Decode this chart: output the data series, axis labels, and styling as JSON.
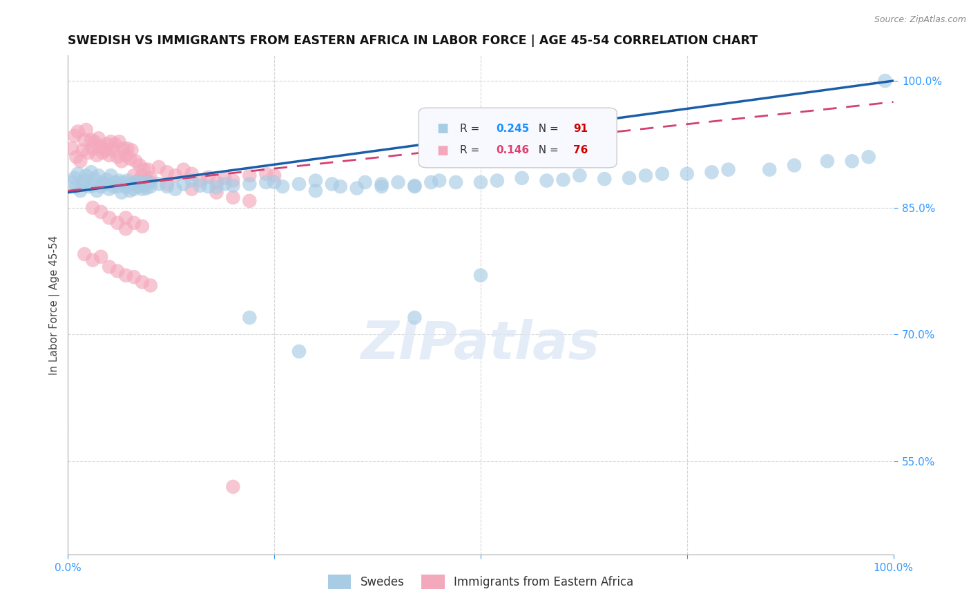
{
  "title": "SWEDISH VS IMMIGRANTS FROM EASTERN AFRICA IN LABOR FORCE | AGE 45-54 CORRELATION CHART",
  "source": "Source: ZipAtlas.com",
  "ylabel": "In Labor Force | Age 45-54",
  "xlim": [
    0.0,
    1.0
  ],
  "ylim": [
    0.44,
    1.03
  ],
  "yticks": [
    0.55,
    0.7,
    0.85,
    1.0
  ],
  "ytick_labels": [
    "55.0%",
    "70.0%",
    "85.0%",
    "100.0%"
  ],
  "xticks": [
    0.0,
    0.25,
    0.5,
    0.75,
    1.0
  ],
  "legend_label1": "Swedes",
  "legend_label2": "Immigrants from Eastern Africa",
  "R1": 0.245,
  "N1": 91,
  "R2": 0.146,
  "N2": 76,
  "color1": "#a8cce4",
  "color2": "#f4a8bc",
  "trendline1_color": "#1a5ea8",
  "trendline2_color": "#d44070",
  "background_color": "#ffffff",
  "title_fontsize": 12.5,
  "tick_color": "#3399ff",
  "legend_box_color": "#f0f4ff",
  "legend_R_color1": "#1a90ff",
  "legend_R_color2": "#e04070",
  "legend_N_color": "#cc0000",
  "swedes_x": [
    0.005,
    0.008,
    0.01,
    0.012,
    0.015,
    0.018,
    0.02,
    0.022,
    0.025,
    0.028,
    0.03,
    0.032,
    0.035,
    0.037,
    0.04,
    0.042,
    0.045,
    0.047,
    0.05,
    0.052,
    0.055,
    0.057,
    0.06,
    0.062,
    0.065,
    0.067,
    0.07,
    0.072,
    0.075,
    0.077,
    0.08,
    0.082,
    0.085,
    0.087,
    0.09,
    0.092,
    0.095,
    0.097,
    0.1,
    0.11,
    0.12,
    0.13,
    0.14,
    0.15,
    0.16,
    0.17,
    0.18,
    0.19,
    0.2,
    0.22,
    0.24,
    0.25,
    0.26,
    0.28,
    0.3,
    0.3,
    0.32,
    0.33,
    0.35,
    0.36,
    0.38,
    0.38,
    0.4,
    0.42,
    0.42,
    0.44,
    0.45,
    0.47,
    0.5,
    0.52,
    0.55,
    0.58,
    0.6,
    0.62,
    0.65,
    0.68,
    0.7,
    0.72,
    0.75,
    0.78,
    0.8,
    0.85,
    0.88,
    0.92,
    0.95,
    0.97,
    0.99,
    0.5,
    0.42,
    0.28,
    0.22
  ],
  "swedes_y": [
    0.88,
    0.885,
    0.875,
    0.89,
    0.87,
    0.878,
    0.882,
    0.888,
    0.875,
    0.892,
    0.876,
    0.884,
    0.87,
    0.888,
    0.875,
    0.88,
    0.878,
    0.883,
    0.872,
    0.888,
    0.875,
    0.88,
    0.875,
    0.882,
    0.868,
    0.88,
    0.875,
    0.882,
    0.87,
    0.878,
    0.872,
    0.88,
    0.875,
    0.88,
    0.872,
    0.876,
    0.873,
    0.88,
    0.875,
    0.878,
    0.875,
    0.872,
    0.878,
    0.882,
    0.876,
    0.875,
    0.874,
    0.878,
    0.876,
    0.878,
    0.88,
    0.88,
    0.875,
    0.878,
    0.882,
    0.87,
    0.878,
    0.875,
    0.873,
    0.88,
    0.878,
    0.875,
    0.88,
    0.876,
    0.875,
    0.88,
    0.882,
    0.88,
    0.88,
    0.882,
    0.885,
    0.882,
    0.883,
    0.888,
    0.884,
    0.885,
    0.888,
    0.89,
    0.89,
    0.892,
    0.895,
    0.895,
    0.9,
    0.905,
    0.905,
    0.91,
    1.0,
    0.77,
    0.72,
    0.68,
    0.72
  ],
  "imm_x": [
    0.005,
    0.008,
    0.01,
    0.012,
    0.015,
    0.018,
    0.02,
    0.022,
    0.025,
    0.028,
    0.03,
    0.032,
    0.035,
    0.037,
    0.04,
    0.042,
    0.045,
    0.047,
    0.05,
    0.052,
    0.055,
    0.057,
    0.06,
    0.062,
    0.065,
    0.067,
    0.07,
    0.072,
    0.075,
    0.077,
    0.08,
    0.082,
    0.085,
    0.087,
    0.09,
    0.092,
    0.095,
    0.097,
    0.1,
    0.11,
    0.12,
    0.13,
    0.14,
    0.15,
    0.16,
    0.17,
    0.18,
    0.19,
    0.2,
    0.22,
    0.24,
    0.25,
    0.07,
    0.08,
    0.09,
    0.03,
    0.04,
    0.05,
    0.06,
    0.07,
    0.1,
    0.12,
    0.15,
    0.18,
    0.2,
    0.22,
    0.02,
    0.03,
    0.04,
    0.05,
    0.06,
    0.07,
    0.08,
    0.09,
    0.1,
    0.2
  ],
  "imm_y": [
    0.92,
    0.935,
    0.91,
    0.94,
    0.905,
    0.918,
    0.93,
    0.942,
    0.915,
    0.93,
    0.92,
    0.928,
    0.912,
    0.932,
    0.922,
    0.915,
    0.918,
    0.925,
    0.912,
    0.928,
    0.918,
    0.925,
    0.91,
    0.928,
    0.905,
    0.92,
    0.912,
    0.92,
    0.908,
    0.918,
    0.888,
    0.905,
    0.882,
    0.9,
    0.888,
    0.895,
    0.882,
    0.895,
    0.885,
    0.898,
    0.892,
    0.888,
    0.895,
    0.89,
    0.882,
    0.886,
    0.88,
    0.885,
    0.882,
    0.888,
    0.89,
    0.888,
    0.838,
    0.832,
    0.828,
    0.85,
    0.845,
    0.838,
    0.832,
    0.825,
    0.88,
    0.878,
    0.872,
    0.868,
    0.862,
    0.858,
    0.795,
    0.788,
    0.792,
    0.78,
    0.775,
    0.77,
    0.768,
    0.762,
    0.758,
    0.52
  ]
}
